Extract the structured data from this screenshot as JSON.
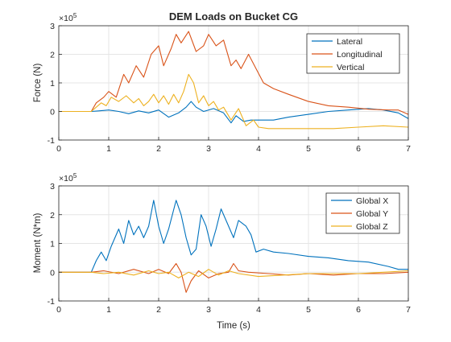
{
  "chart_data": [
    {
      "type": "line",
      "title": "DEM Loads on Bucket CG",
      "xlabel": "",
      "ylabel": "Force (N)",
      "exponent_label": "×10^5",
      "exponent_base": "×10",
      "exponent_power": "5",
      "xlim": [
        0,
        7
      ],
      "ylim": [
        -1,
        3
      ],
      "xticks": [
        "0",
        "1",
        "2",
        "3",
        "4",
        "5",
        "6",
        "7"
      ],
      "yticks": [
        "-1",
        "0",
        "1",
        "2",
        "3"
      ],
      "grid": true,
      "legend_position": "top-right",
      "series": [
        {
          "name": "Lateral",
          "color": "#0072BD",
          "points": [
            [
              0,
              0
            ],
            [
              0.65,
              0
            ],
            [
              0.8,
              0.02
            ],
            [
              1.0,
              0.05
            ],
            [
              1.2,
              0.0
            ],
            [
              1.4,
              -0.08
            ],
            [
              1.6,
              0.02
            ],
            [
              1.8,
              -0.05
            ],
            [
              2.0,
              0.05
            ],
            [
              2.2,
              -0.2
            ],
            [
              2.4,
              -0.05
            ],
            [
              2.55,
              0.15
            ],
            [
              2.65,
              0.35
            ],
            [
              2.75,
              0.15
            ],
            [
              2.9,
              0.0
            ],
            [
              3.1,
              0.1
            ],
            [
              3.3,
              -0.05
            ],
            [
              3.45,
              -0.4
            ],
            [
              3.55,
              -0.15
            ],
            [
              3.7,
              -0.35
            ],
            [
              3.85,
              -0.3
            ],
            [
              4.0,
              -0.3
            ],
            [
              4.3,
              -0.3
            ],
            [
              4.6,
              -0.2
            ],
            [
              5.0,
              -0.1
            ],
            [
              5.4,
              0.0
            ],
            [
              5.8,
              0.05
            ],
            [
              6.2,
              0.1
            ],
            [
              6.5,
              0.05
            ],
            [
              6.8,
              -0.05
            ],
            [
              7.0,
              -0.25
            ]
          ]
        },
        {
          "name": "Longitudinal",
          "color": "#D95319",
          "points": [
            [
              0,
              0
            ],
            [
              0.65,
              0
            ],
            [
              0.75,
              0.3
            ],
            [
              0.9,
              0.5
            ],
            [
              1.0,
              0.7
            ],
            [
              1.15,
              0.5
            ],
            [
              1.3,
              1.3
            ],
            [
              1.4,
              1.0
            ],
            [
              1.55,
              1.6
            ],
            [
              1.7,
              1.2
            ],
            [
              1.85,
              2.0
            ],
            [
              2.0,
              2.3
            ],
            [
              2.1,
              1.6
            ],
            [
              2.25,
              2.2
            ],
            [
              2.35,
              2.7
            ],
            [
              2.45,
              2.4
            ],
            [
              2.6,
              2.8
            ],
            [
              2.75,
              2.1
            ],
            [
              2.9,
              2.3
            ],
            [
              3.0,
              2.7
            ],
            [
              3.15,
              2.3
            ],
            [
              3.3,
              2.5
            ],
            [
              3.45,
              1.6
            ],
            [
              3.55,
              1.8
            ],
            [
              3.65,
              1.5
            ],
            [
              3.8,
              2.0
            ],
            [
              3.95,
              1.5
            ],
            [
              4.1,
              1.0
            ],
            [
              4.3,
              0.8
            ],
            [
              4.6,
              0.6
            ],
            [
              5.0,
              0.35
            ],
            [
              5.4,
              0.2
            ],
            [
              5.8,
              0.15
            ],
            [
              6.2,
              0.08
            ],
            [
              6.6,
              0.05
            ],
            [
              6.8,
              0.05
            ],
            [
              7.0,
              -0.1
            ]
          ]
        },
        {
          "name": "Vertical",
          "color": "#EDB120",
          "points": [
            [
              0,
              0
            ],
            [
              0.65,
              0
            ],
            [
              0.75,
              0.15
            ],
            [
              0.85,
              0.3
            ],
            [
              0.95,
              0.2
            ],
            [
              1.05,
              0.5
            ],
            [
              1.2,
              0.35
            ],
            [
              1.35,
              0.55
            ],
            [
              1.5,
              0.3
            ],
            [
              1.6,
              0.45
            ],
            [
              1.7,
              0.2
            ],
            [
              1.8,
              0.35
            ],
            [
              1.9,
              0.6
            ],
            [
              2.0,
              0.3
            ],
            [
              2.1,
              0.55
            ],
            [
              2.2,
              0.25
            ],
            [
              2.3,
              0.6
            ],
            [
              2.4,
              0.3
            ],
            [
              2.5,
              0.7
            ],
            [
              2.6,
              1.3
            ],
            [
              2.7,
              1.0
            ],
            [
              2.8,
              0.3
            ],
            [
              2.9,
              0.55
            ],
            [
              3.0,
              0.2
            ],
            [
              3.1,
              0.35
            ],
            [
              3.2,
              0.05
            ],
            [
              3.3,
              0.15
            ],
            [
              3.45,
              -0.3
            ],
            [
              3.6,
              0.1
            ],
            [
              3.75,
              -0.5
            ],
            [
              3.9,
              -0.3
            ],
            [
              4.0,
              -0.55
            ],
            [
              4.2,
              -0.6
            ],
            [
              4.5,
              -0.6
            ],
            [
              4.8,
              -0.6
            ],
            [
              5.1,
              -0.6
            ],
            [
              5.5,
              -0.6
            ],
            [
              6.0,
              -0.55
            ],
            [
              6.5,
              -0.5
            ],
            [
              7.0,
              -0.55
            ]
          ]
        }
      ]
    },
    {
      "type": "line",
      "title": "",
      "xlabel": "Time (s)",
      "ylabel": "Moment (N*m)",
      "exponent_label": "×10^5",
      "exponent_base": "×10",
      "exponent_power": "5",
      "xlim": [
        0,
        7
      ],
      "ylim": [
        -1,
        3
      ],
      "xticks": [
        "0",
        "1",
        "2",
        "3",
        "4",
        "5",
        "6",
        "7"
      ],
      "yticks": [
        "-1",
        "0",
        "1",
        "2",
        "3"
      ],
      "grid": true,
      "legend_position": "top-right",
      "series": [
        {
          "name": "Global X",
          "color": "#0072BD",
          "points": [
            [
              0,
              0
            ],
            [
              0.65,
              0
            ],
            [
              0.75,
              0.4
            ],
            [
              0.85,
              0.7
            ],
            [
              0.95,
              0.4
            ],
            [
              1.05,
              0.9
            ],
            [
              1.2,
              1.5
            ],
            [
              1.3,
              1.0
            ],
            [
              1.4,
              1.8
            ],
            [
              1.5,
              1.3
            ],
            [
              1.6,
              1.6
            ],
            [
              1.7,
              1.2
            ],
            [
              1.8,
              1.6
            ],
            [
              1.9,
              2.5
            ],
            [
              2.0,
              1.6
            ],
            [
              2.1,
              1.0
            ],
            [
              2.2,
              1.5
            ],
            [
              2.35,
              2.5
            ],
            [
              2.45,
              2.0
            ],
            [
              2.55,
              1.2
            ],
            [
              2.65,
              0.6
            ],
            [
              2.75,
              0.8
            ],
            [
              2.85,
              2.0
            ],
            [
              2.95,
              1.6
            ],
            [
              3.05,
              0.9
            ],
            [
              3.15,
              1.5
            ],
            [
              3.25,
              2.2
            ],
            [
              3.35,
              1.8
            ],
            [
              3.5,
              1.2
            ],
            [
              3.6,
              1.8
            ],
            [
              3.75,
              1.6
            ],
            [
              3.85,
              1.3
            ],
            [
              3.95,
              0.7
            ],
            [
              4.1,
              0.8
            ],
            [
              4.3,
              0.7
            ],
            [
              4.6,
              0.65
            ],
            [
              5.0,
              0.55
            ],
            [
              5.4,
              0.5
            ],
            [
              5.8,
              0.4
            ],
            [
              6.2,
              0.35
            ],
            [
              6.6,
              0.2
            ],
            [
              6.8,
              0.1
            ],
            [
              7.0,
              0.1
            ]
          ]
        },
        {
          "name": "Global Y",
          "color": "#D95319",
          "points": [
            [
              0,
              0
            ],
            [
              0.65,
              0
            ],
            [
              0.9,
              0.05
            ],
            [
              1.2,
              -0.05
            ],
            [
              1.5,
              0.1
            ],
            [
              1.8,
              -0.05
            ],
            [
              2.0,
              0.1
            ],
            [
              2.2,
              -0.05
            ],
            [
              2.35,
              0.3
            ],
            [
              2.45,
              0.0
            ],
            [
              2.55,
              -0.7
            ],
            [
              2.65,
              -0.3
            ],
            [
              2.8,
              0.05
            ],
            [
              3.0,
              -0.2
            ],
            [
              3.2,
              -0.05
            ],
            [
              3.4,
              0.0
            ],
            [
              3.5,
              0.3
            ],
            [
              3.6,
              0.05
            ],
            [
              3.8,
              0.0
            ],
            [
              4.2,
              -0.05
            ],
            [
              4.6,
              -0.1
            ],
            [
              5.0,
              -0.05
            ],
            [
              5.5,
              -0.1
            ],
            [
              6.0,
              -0.05
            ],
            [
              6.5,
              -0.05
            ],
            [
              7.0,
              0.0
            ]
          ]
        },
        {
          "name": "Global Z",
          "color": "#EDB120",
          "points": [
            [
              0,
              0
            ],
            [
              0.65,
              0
            ],
            [
              0.9,
              -0.05
            ],
            [
              1.2,
              0.0
            ],
            [
              1.5,
              -0.1
            ],
            [
              1.8,
              0.05
            ],
            [
              2.0,
              -0.05
            ],
            [
              2.2,
              0.0
            ],
            [
              2.4,
              -0.2
            ],
            [
              2.6,
              0.0
            ],
            [
              2.8,
              -0.15
            ],
            [
              3.0,
              0.1
            ],
            [
              3.2,
              -0.1
            ],
            [
              3.4,
              0.05
            ],
            [
              3.6,
              -0.05
            ],
            [
              4.0,
              -0.15
            ],
            [
              4.5,
              -0.1
            ],
            [
              5.0,
              -0.05
            ],
            [
              5.5,
              -0.05
            ],
            [
              6.0,
              -0.05
            ],
            [
              6.5,
              0.0
            ],
            [
              7.0,
              0.05
            ]
          ]
        }
      ]
    }
  ]
}
